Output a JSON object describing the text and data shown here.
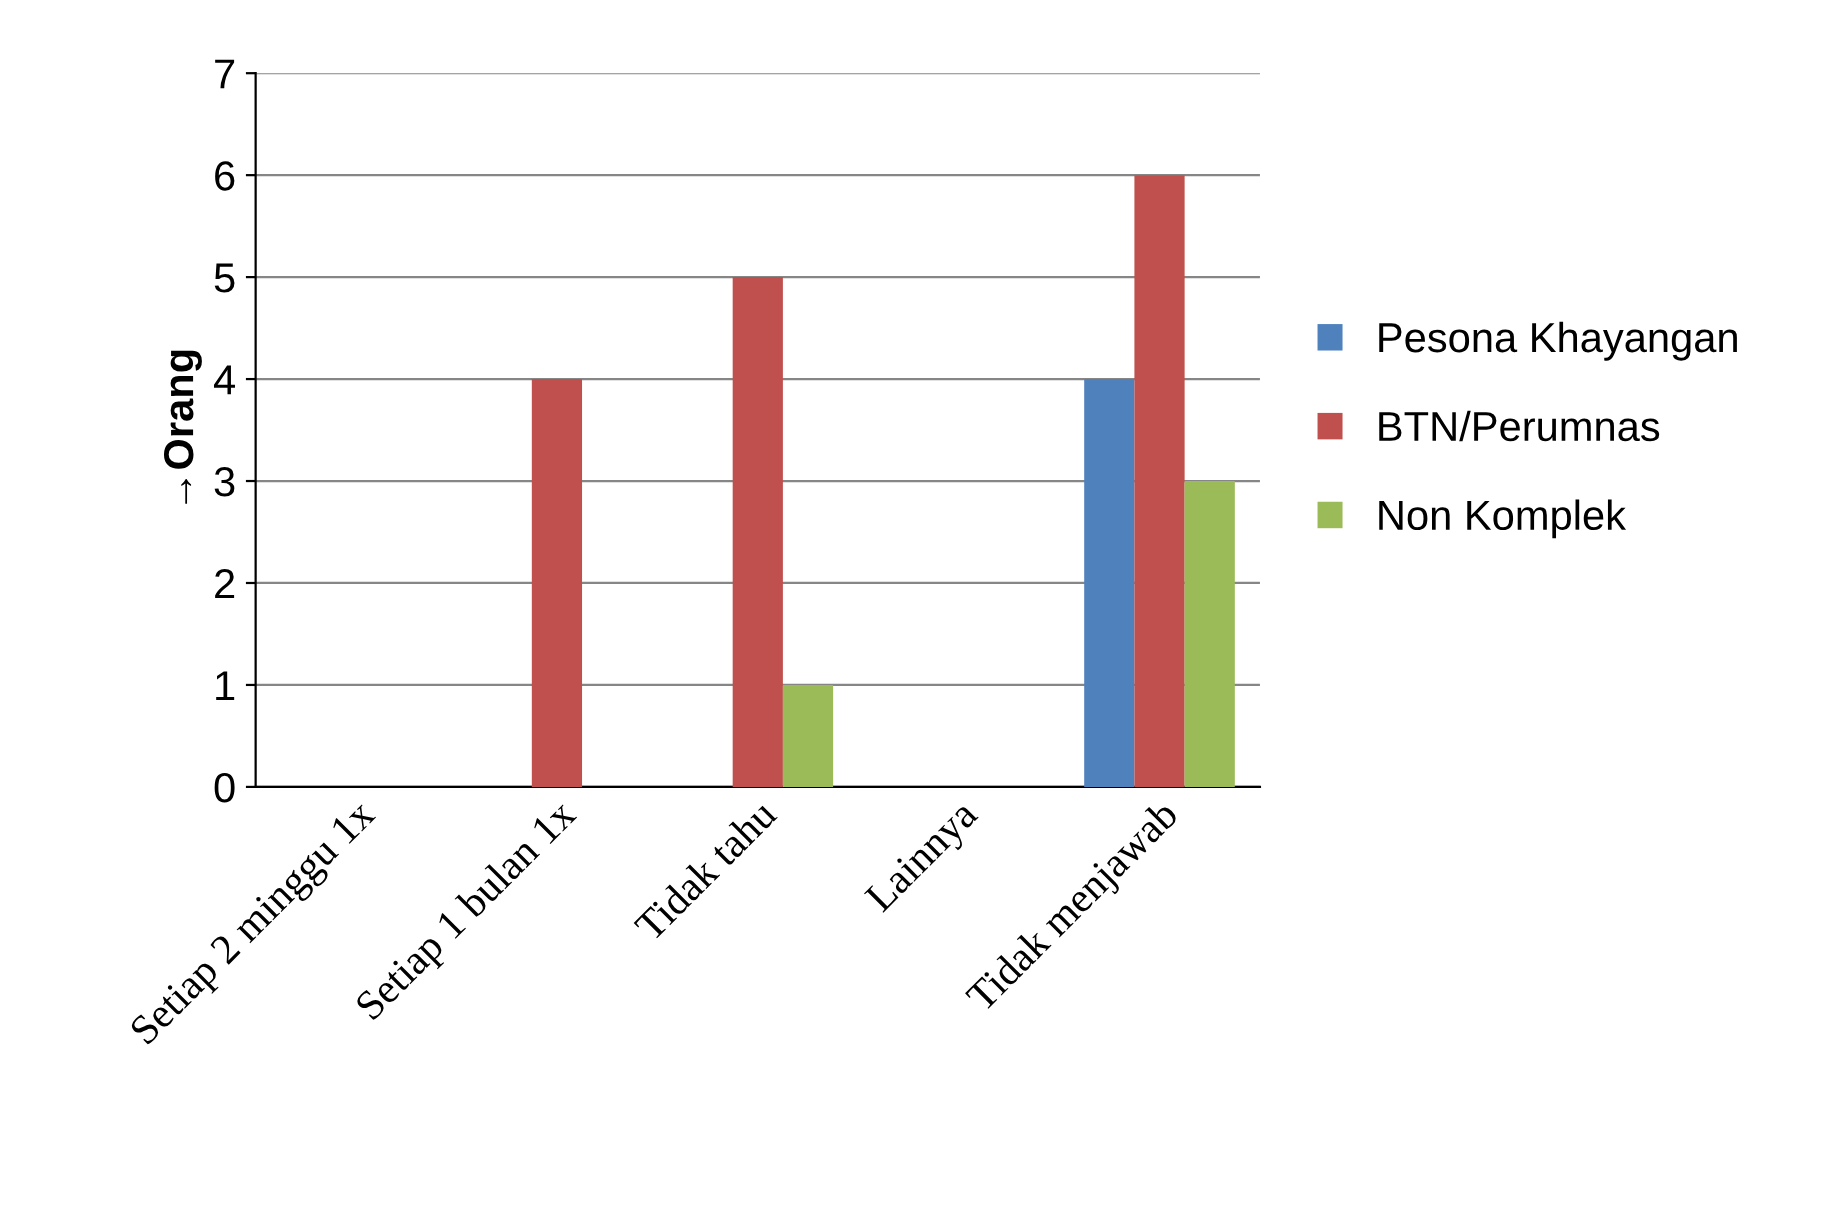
{
  "chart_data": {
    "type": "bar",
    "ylabel": "→Orang",
    "categories": [
      "Setiap 2 minggu 1x",
      "Setiap 1 bulan 1x",
      "Tidak tahu",
      "Lainnya",
      "Tidak menjawab"
    ],
    "series": [
      {
        "name": "Pesona Khayangan",
        "color": "#4f81bd",
        "values": [
          0,
          0,
          0,
          0,
          4
        ]
      },
      {
        "name": "BTN/Perumnas",
        "color": "#c0504d",
        "values": [
          0,
          4,
          5,
          0,
          6
        ]
      },
      {
        "name": "Non Komplek",
        "color": "#9bbb59",
        "values": [
          0,
          0,
          1,
          0,
          3
        ]
      }
    ],
    "ylim": [
      0,
      7
    ],
    "yticks": [
      0,
      1,
      2,
      3,
      4,
      5,
      6,
      7
    ],
    "grid": "y",
    "legend": "right"
  }
}
